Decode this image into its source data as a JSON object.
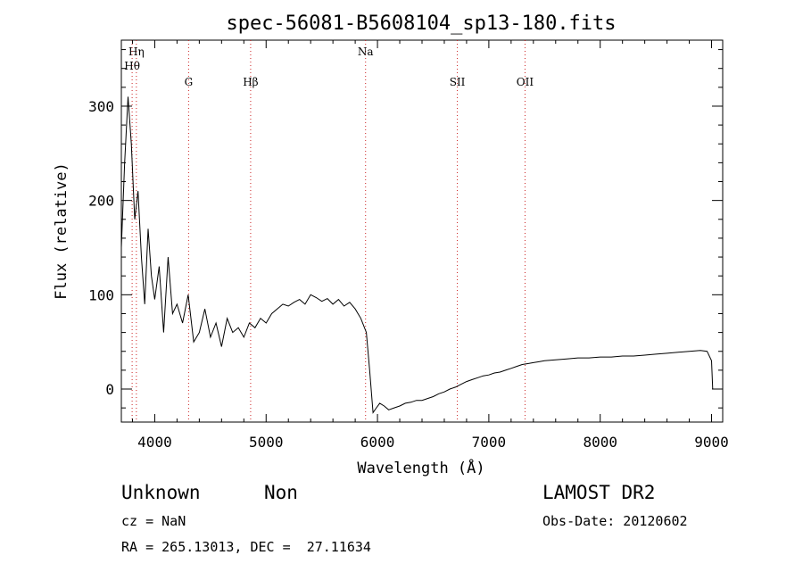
{
  "chart_data": {
    "type": "line",
    "title": "spec-56081-B5608104_sp13-180.fits",
    "xlabel": "Wavelength (Å)",
    "ylabel": "Flux (relative)",
    "xlim": [
      3700,
      9100
    ],
    "ylim": [
      -35,
      370
    ],
    "x_ticks": [
      4000,
      5000,
      6000,
      7000,
      8000,
      9000
    ],
    "y_ticks": [
      0,
      100,
      200,
      300
    ],
    "grid": false,
    "lines": [
      {
        "label": "Hη",
        "x": 3835
      },
      {
        "label": "Hθ",
        "x": 3797
      },
      {
        "label": "G",
        "x": 4304
      },
      {
        "label": "Hβ",
        "x": 4861
      },
      {
        "label": "Na",
        "x": 5893
      },
      {
        "label": "SII",
        "x": 6717
      },
      {
        "label": "OII",
        "x": 7325
      }
    ],
    "series": [
      {
        "x": [
          3700,
          3730,
          3760,
          3790,
          3820,
          3850,
          3880,
          3910,
          3940,
          3970,
          4000,
          4040,
          4080,
          4120,
          4160,
          4200,
          4250,
          4300,
          4350,
          4400,
          4450,
          4500,
          4550,
          4600,
          4650,
          4700,
          4750,
          4800,
          4850,
          4900,
          4950,
          5000,
          5050,
          5100,
          5150,
          5200,
          5250,
          5300,
          5350,
          5400,
          5450,
          5500,
          5550,
          5600,
          5650,
          5700,
          5750,
          5800,
          5850,
          5900,
          5930,
          5960,
          5990,
          6020,
          6060,
          6100,
          6150,
          6200,
          6250,
          6300,
          6350,
          6400,
          6450,
          6500,
          6550,
          6600,
          6650,
          6700,
          6750,
          6800,
          6850,
          6900,
          6950,
          7000,
          7050,
          7100,
          7150,
          7200,
          7250,
          7300,
          7350,
          7400,
          7450,
          7500,
          7600,
          7700,
          7800,
          7900,
          8000,
          8100,
          8200,
          8300,
          8400,
          8500,
          8600,
          8700,
          8800,
          8900,
          8960,
          9000,
          9010
        ],
        "y": [
          150,
          240,
          310,
          260,
          180,
          210,
          140,
          90,
          170,
          120,
          95,
          130,
          60,
          140,
          80,
          90,
          70,
          100,
          50,
          60,
          85,
          55,
          70,
          45,
          75,
          60,
          65,
          55,
          70,
          65,
          75,
          70,
          80,
          85,
          90,
          88,
          92,
          95,
          90,
          100,
          97,
          93,
          96,
          90,
          95,
          88,
          92,
          85,
          75,
          60,
          20,
          -25,
          -20,
          -15,
          -18,
          -22,
          -20,
          -18,
          -15,
          -14,
          -12,
          -12,
          -10,
          -8,
          -5,
          -3,
          0,
          2,
          5,
          8,
          10,
          12,
          14,
          15,
          17,
          18,
          20,
          22,
          24,
          26,
          27,
          28,
          29,
          30,
          31,
          32,
          33,
          33,
          34,
          34,
          35,
          35,
          36,
          37,
          38,
          39,
          40,
          41,
          40,
          30,
          0
        ]
      }
    ]
  },
  "info": {
    "class_label": "Unknown",
    "subclass_label": "Non",
    "survey": "LAMOST DR2",
    "cz": "cz = NaN",
    "obs_date": "Obs-Date: 20120602",
    "coords": "RA = 265.13013, DEC =  27.11634"
  }
}
